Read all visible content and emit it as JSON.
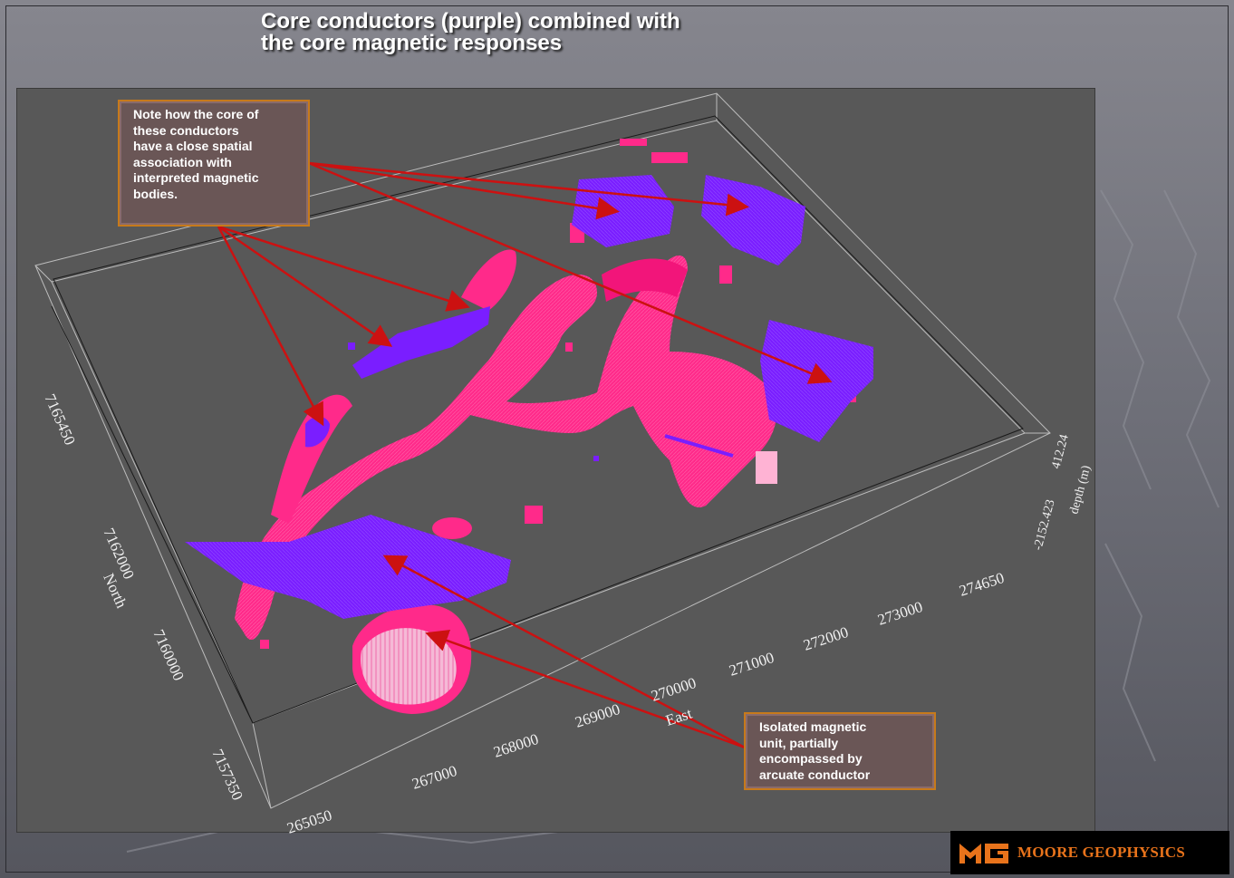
{
  "slide": {
    "title_line1": "Core conductors (purple) combined with",
    "title_line2": "the core magnetic responses"
  },
  "colors": {
    "conductor": "#7a1eff",
    "magnetic": "#ff2a8a",
    "arrow": "#cc1111",
    "callout_border": "#c77a1b",
    "logo_accent": "#e8731b"
  },
  "callouts": {
    "top": "Note how the core of\nthese conductors\nhave a close spatial\nassociation with\ninterpreted magnetic\nbodies.",
    "bottom": "Isolated magnetic\nunit, partially\nencompassed by\narcuate conductor"
  },
  "axes": {
    "east_label": "East",
    "north_label": "North",
    "depth_label": "depth (m)",
    "east_ticks": [
      "265050",
      "267000",
      "268000",
      "269000",
      "270000",
      "271000",
      "272000",
      "273000",
      "274650"
    ],
    "north_ticks": [
      "7157350",
      "7160000",
      "7162000",
      "7165450"
    ],
    "depth_ticks": [
      "-2152.423",
      "412.24"
    ]
  },
  "logo": {
    "icon": "mg-logo-icon",
    "text": "MOORE GEOPHYSICS"
  }
}
